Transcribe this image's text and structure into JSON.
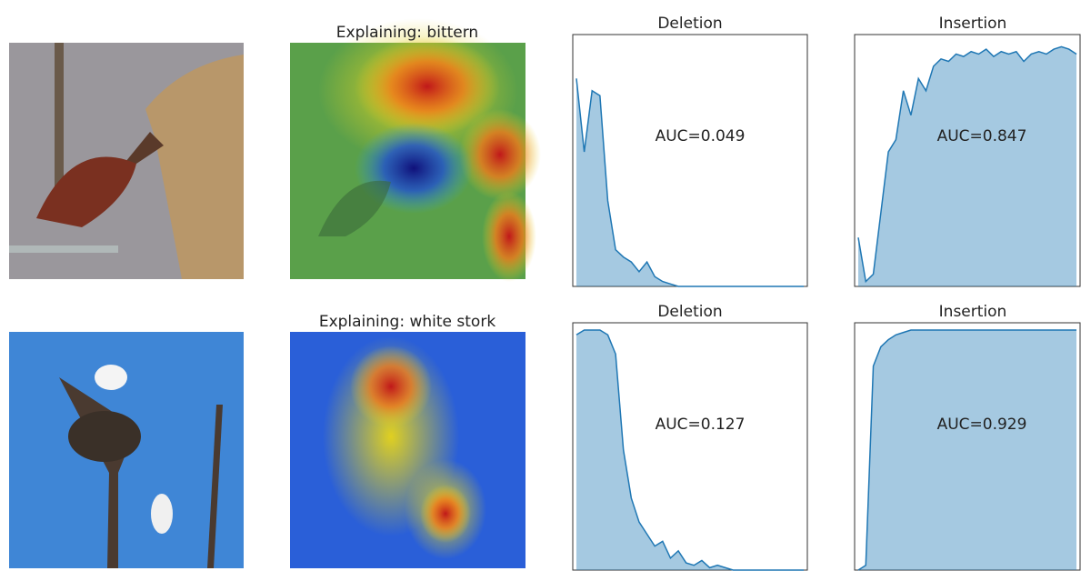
{
  "rows": [
    {
      "heatmap_title": "Explaining: bittern"
    },
    {
      "heatmap_title": "Explaining: white stork"
    }
  ],
  "chart_data": [
    {
      "type": "area",
      "title": "Deletion",
      "annotation": "AUC=0.049",
      "color": "#1f77b4",
      "ylim": [
        0,
        1
      ],
      "values": [
        0.85,
        0.55,
        0.8,
        0.78,
        0.35,
        0.15,
        0.12,
        0.1,
        0.06,
        0.1,
        0.04,
        0.02,
        0.01,
        0,
        0,
        0,
        0,
        0,
        0,
        0,
        0,
        0,
        0,
        0,
        0,
        0,
        0,
        0,
        0,
        0
      ]
    },
    {
      "type": "area",
      "title": "Insertion",
      "annotation": "AUC=0.847",
      "color": "#1f77b4",
      "ylim": [
        0,
        1
      ],
      "values": [
        0.2,
        0.02,
        0.05,
        0.3,
        0.55,
        0.6,
        0.8,
        0.7,
        0.85,
        0.8,
        0.9,
        0.93,
        0.92,
        0.95,
        0.94,
        0.96,
        0.95,
        0.97,
        0.94,
        0.96,
        0.95,
        0.96,
        0.92,
        0.95,
        0.96,
        0.95,
        0.97,
        0.98,
        0.97,
        0.95
      ]
    },
    {
      "type": "area",
      "title": "Deletion",
      "annotation": "AUC=0.127",
      "color": "#1f77b4",
      "ylim": [
        0,
        1
      ],
      "values": [
        0.98,
        1,
        1,
        1,
        0.98,
        0.9,
        0.5,
        0.3,
        0.2,
        0.15,
        0.1,
        0.12,
        0.05,
        0.08,
        0.03,
        0.02,
        0.04,
        0.01,
        0.02,
        0.01,
        0,
        0,
        0,
        0,
        0,
        0,
        0,
        0,
        0,
        0
      ]
    },
    {
      "type": "area",
      "title": "Insertion",
      "annotation": "AUC=0.929",
      "color": "#1f77b4",
      "ylim": [
        0,
        1
      ],
      "values": [
        0,
        0.02,
        0.85,
        0.93,
        0.96,
        0.98,
        0.99,
        1,
        1,
        1,
        1,
        1,
        1,
        1,
        1,
        1,
        1,
        1,
        1,
        1,
        1,
        1,
        1,
        1,
        1,
        1,
        1,
        1,
        1,
        1
      ]
    }
  ]
}
